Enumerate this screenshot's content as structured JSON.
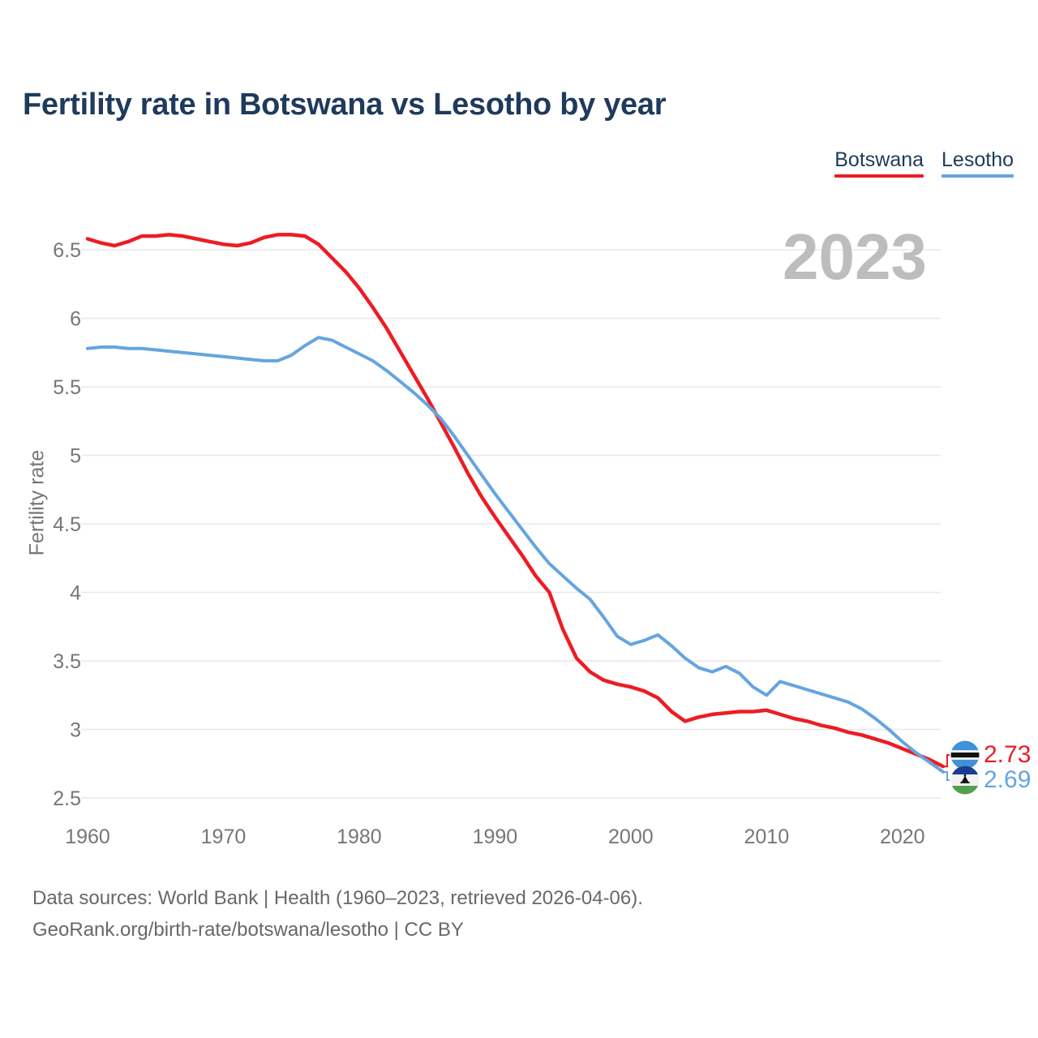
{
  "header": {
    "title": "Fertility rate in Botswana vs Lesotho by year"
  },
  "legend": {
    "items": [
      {
        "label": "Botswana",
        "color": "#ed1c24"
      },
      {
        "label": "Lesotho",
        "color": "#64a5e0"
      }
    ]
  },
  "footer": {
    "line1": "Data sources: World Bank | Health (1960–2023, retrieved 2026-04-06).",
    "line2": "GeoRank.org/birth-rate/botswana/lesotho | CC BY"
  },
  "chart_data": {
    "type": "line",
    "title": "Fertility rate in Botswana vs Lesotho by year",
    "watermark": "2023",
    "xlabel": "",
    "ylabel": "Fertility rate",
    "legend_position": "top-right",
    "grid": "horizontal-only",
    "x_axis": {
      "ticks": [
        1960,
        1970,
        1980,
        1990,
        2000,
        2010,
        2020
      ],
      "range": [
        1960,
        2023
      ]
    },
    "y_axis": {
      "title": "Fertility rate",
      "ticks": [
        6.5,
        6,
        5.5,
        5,
        4.5,
        4,
        3.5,
        3,
        2.5
      ],
      "range": [
        2.5,
        6.5
      ]
    },
    "x_start_year": 1960,
    "x_end_year": 2023,
    "series": [
      {
        "name": "Botswana",
        "color": "#ed1c24",
        "values": [
          6.58,
          6.55,
          6.53,
          6.56,
          6.6,
          6.6,
          6.61,
          6.6,
          6.58,
          6.56,
          6.54,
          6.53,
          6.55,
          6.59,
          6.61,
          6.61,
          6.6,
          6.54,
          6.44,
          6.34,
          6.22,
          6.08,
          5.93,
          5.76,
          5.59,
          5.42,
          5.24,
          5.06,
          4.87,
          4.7,
          4.55,
          4.41,
          4.27,
          4.12,
          4.0,
          3.73,
          3.52,
          3.42,
          3.36,
          3.33,
          3.31,
          3.28,
          3.23,
          3.13,
          3.06,
          3.09,
          3.11,
          3.12,
          3.13,
          3.13,
          3.14,
          3.11,
          3.08,
          3.06,
          3.03,
          3.01,
          2.98,
          2.96,
          2.93,
          2.9,
          2.86,
          2.82,
          2.78,
          2.73
        ]
      },
      {
        "name": "Lesotho",
        "color": "#64a5e0",
        "values": [
          5.78,
          5.79,
          5.79,
          5.78,
          5.78,
          5.77,
          5.76,
          5.75,
          5.74,
          5.73,
          5.72,
          5.71,
          5.7,
          5.69,
          5.69,
          5.73,
          5.8,
          5.86,
          5.84,
          5.79,
          5.74,
          5.69,
          5.62,
          5.54,
          5.46,
          5.37,
          5.27,
          5.14,
          5.0,
          4.86,
          4.72,
          4.59,
          4.46,
          4.33,
          4.21,
          4.12,
          4.03,
          3.95,
          3.82,
          3.68,
          3.62,
          3.65,
          3.69,
          3.61,
          3.52,
          3.45,
          3.42,
          3.46,
          3.41,
          3.31,
          3.25,
          3.35,
          3.32,
          3.29,
          3.26,
          3.23,
          3.2,
          3.15,
          3.08,
          3.0,
          2.91,
          2.83,
          2.76,
          2.69
        ]
      }
    ],
    "end_labels": [
      {
        "series": "Botswana",
        "value": "2.73",
        "color": "#ed1c24",
        "flag_icon": "botswana-flag-icon"
      },
      {
        "series": "Lesotho",
        "value": "2.69",
        "color": "#64a5e0",
        "flag_icon": "lesotho-flag-icon"
      }
    ],
    "scales": {
      "x": {
        "domain": [
          1960,
          2023
        ],
        "range": [
          108,
          1163
        ]
      },
      "y": {
        "domain": [
          6.5,
          2.5
        ],
        "range": [
          308,
          984
        ]
      }
    }
  }
}
